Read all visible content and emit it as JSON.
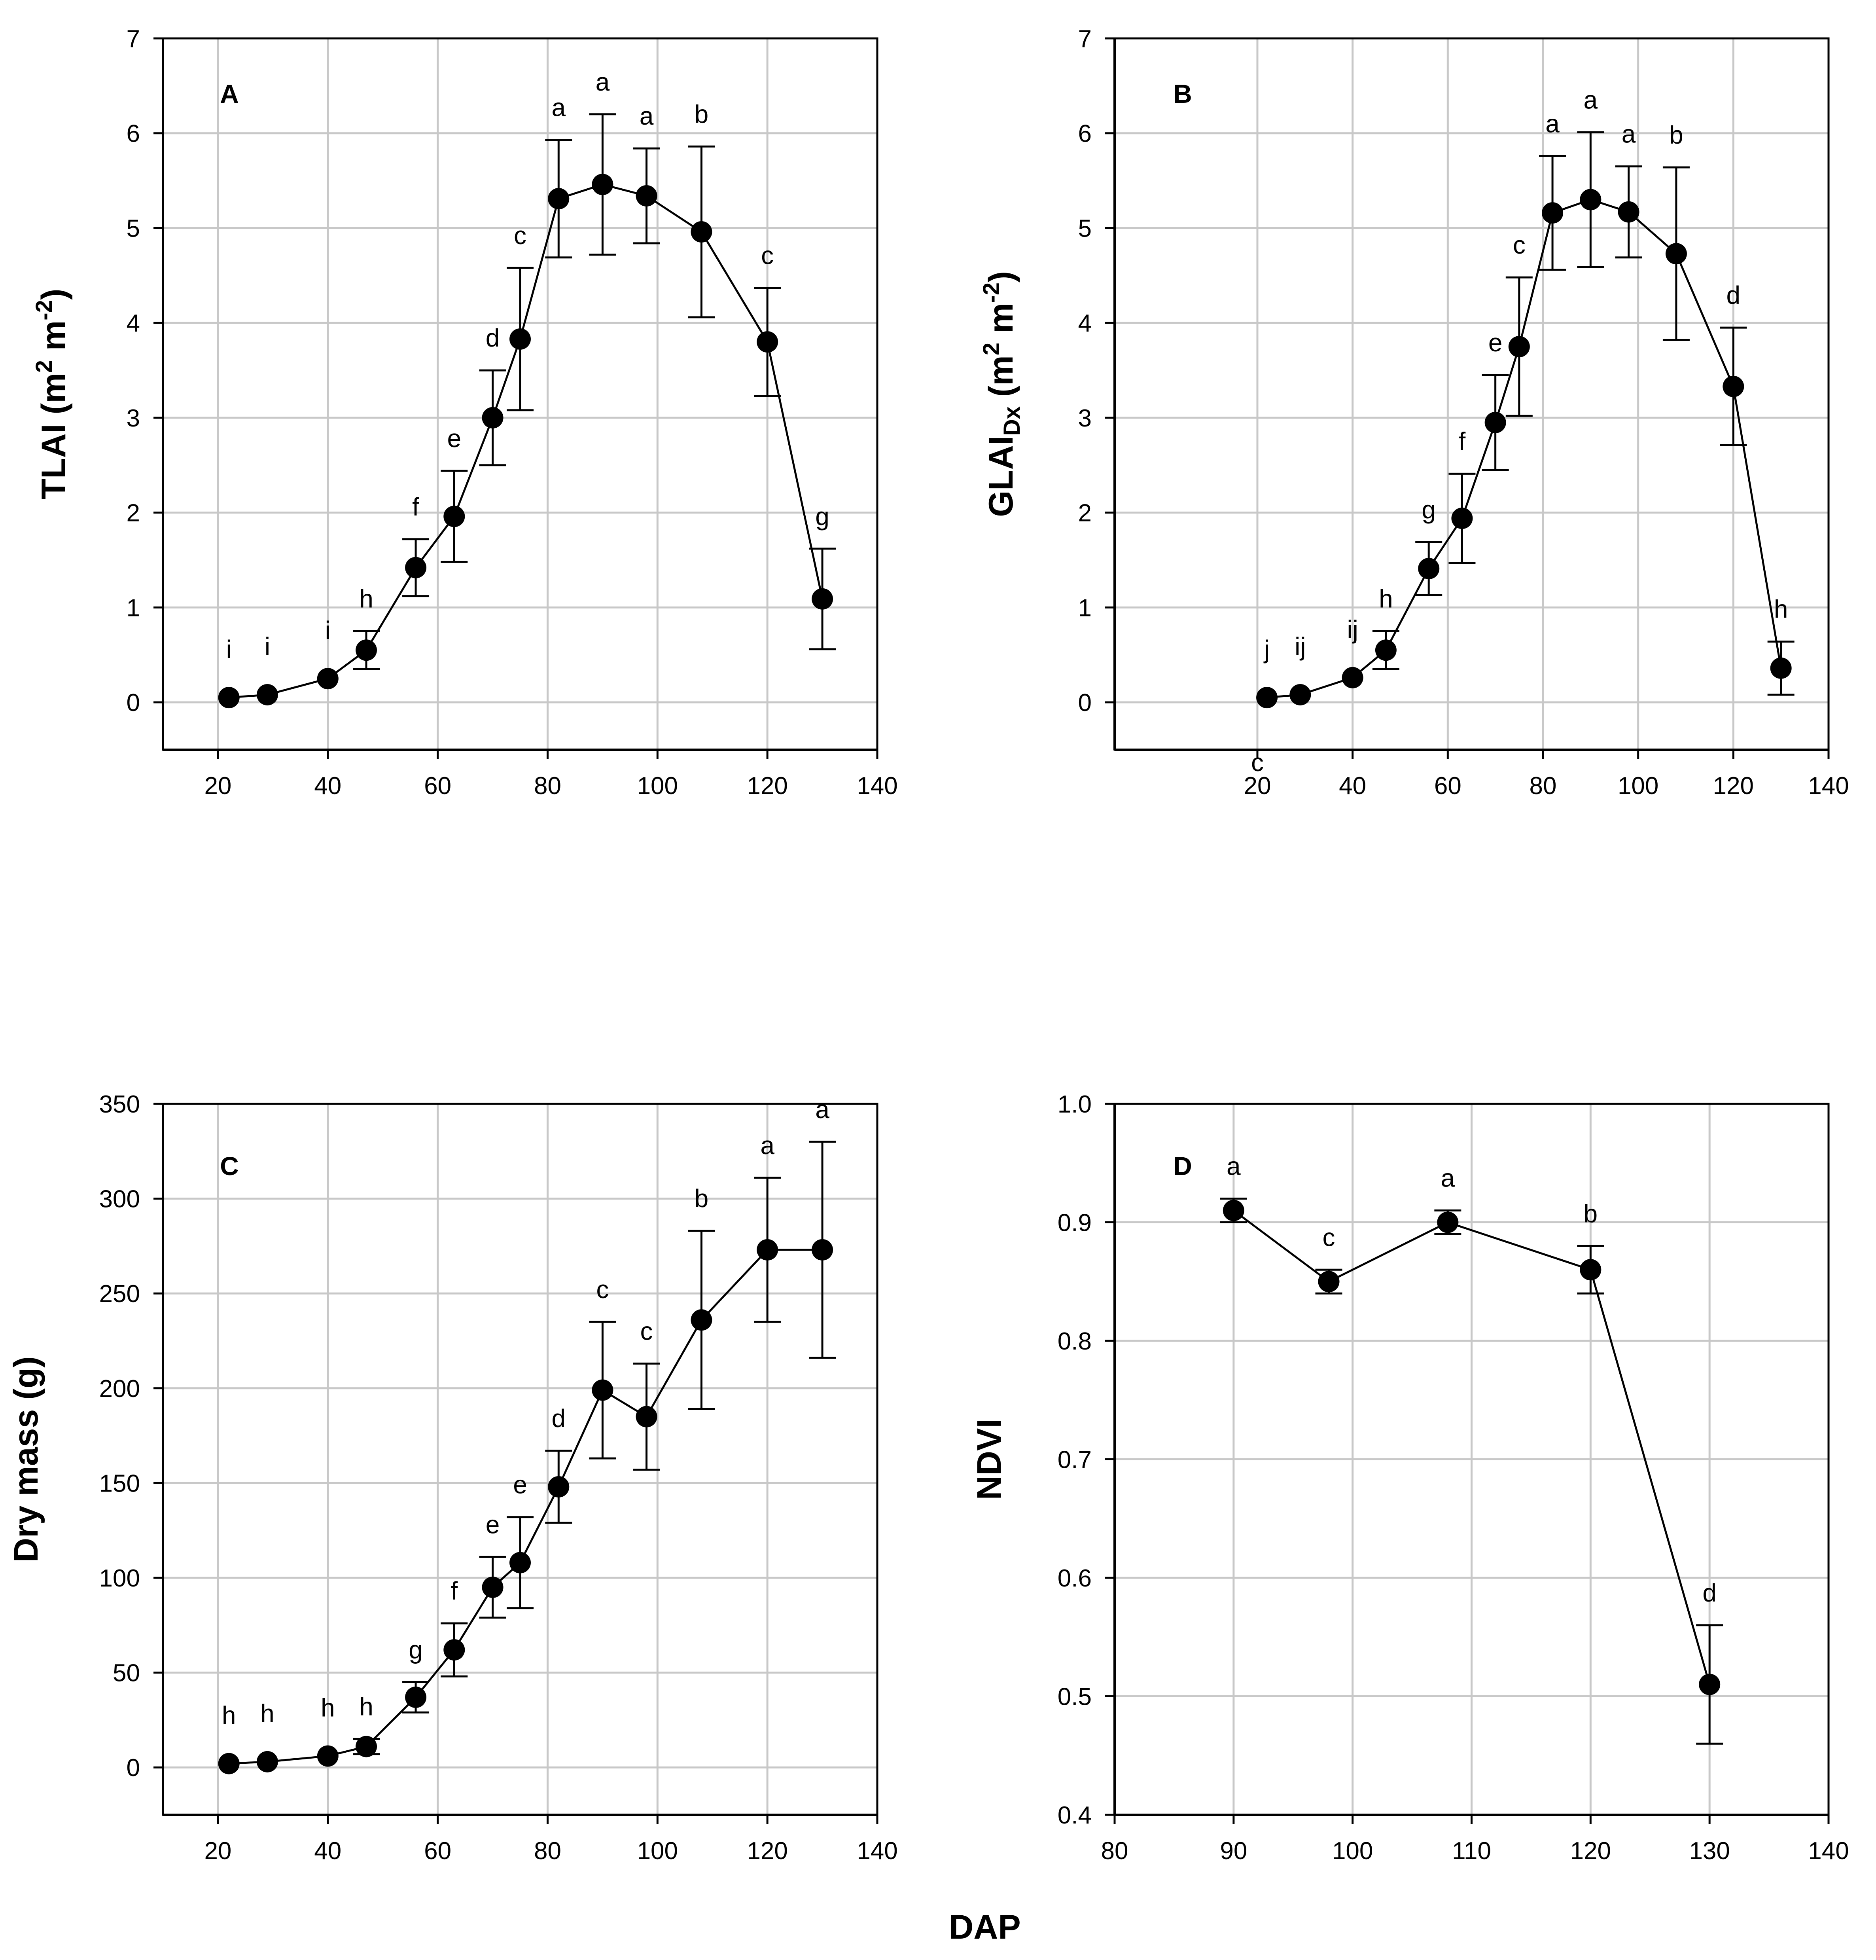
{
  "figure_xlabel": "DAP",
  "chart_data": [
    {
      "id": "A",
      "type": "line",
      "panel_label": "A",
      "ylabel_main": "TLAI (m",
      "ylabel_sup1": "2",
      "ylabel_mid": " m",
      "ylabel_sup2": "-2",
      "ylabel_tail": ")",
      "xlim": [
        10,
        140
      ],
      "ylim": [
        -0.5,
        7
      ],
      "xticks": [
        20,
        40,
        60,
        80,
        100,
        120,
        140
      ],
      "yticks": [
        0,
        1,
        2,
        3,
        4,
        5,
        6,
        7
      ],
      "x": [
        22,
        29,
        40,
        47,
        56,
        63,
        70,
        75,
        82,
        90,
        98,
        108,
        120,
        130
      ],
      "y": [
        0.05,
        0.08,
        0.25,
        0.55,
        1.42,
        1.96,
        3.0,
        3.83,
        5.31,
        5.46,
        5.34,
        4.96,
        3.8,
        1.09
      ],
      "err": [
        0,
        0,
        0,
        0.2,
        0.3,
        0.48,
        0.5,
        0.75,
        0.62,
        0.74,
        0.5,
        0.9,
        0.57,
        0.53
      ],
      "letters": [
        "i",
        "i",
        "i",
        "h",
        "f",
        "e",
        "d",
        "c",
        "a",
        "a",
        "a",
        "b",
        "c",
        "g"
      ],
      "extra_letters": []
    },
    {
      "id": "B",
      "type": "line",
      "panel_label": "B",
      "ylabel_main": "GLAI",
      "ylabel_sub": "Dx",
      "ylabel_mid": " (m",
      "ylabel_sup1": "2",
      "ylabel_mid2": " m",
      "ylabel_sup2": "-2",
      "ylabel_tail": ")",
      "xlim": [
        -10,
        140
      ],
      "ylim": [
        -0.5,
        7
      ],
      "xticks": [
        20,
        40,
        60,
        80,
        100,
        120,
        140
      ],
      "yticks": [
        0,
        1,
        2,
        3,
        4,
        5,
        6,
        7
      ],
      "x": [
        22,
        29,
        40,
        47,
        56,
        63,
        70,
        75,
        82,
        90,
        98,
        108,
        120,
        130
      ],
      "y": [
        0.05,
        0.08,
        0.26,
        0.55,
        1.41,
        1.94,
        2.95,
        3.75,
        5.16,
        5.3,
        5.17,
        4.73,
        3.33,
        0.36
      ],
      "err": [
        0,
        0,
        0,
        0.2,
        0.28,
        0.47,
        0.5,
        0.73,
        0.6,
        0.71,
        0.48,
        0.91,
        0.62,
        0.28
      ],
      "letters": [
        "j",
        "ij",
        "ij",
        "h",
        "g",
        "f",
        "e",
        "c",
        "a",
        "a",
        "a",
        "b",
        "d",
        "h"
      ],
      "extra_letters": [
        {
          "x": 20,
          "y": -0.6,
          "text": "c"
        }
      ]
    },
    {
      "id": "C",
      "type": "line",
      "panel_label": "C",
      "ylabel_main": "Dry mass (g)",
      "xlim": [
        10,
        140
      ],
      "ylim": [
        -25,
        350
      ],
      "xticks": [
        20,
        40,
        60,
        80,
        100,
        120,
        140
      ],
      "yticks": [
        0,
        50,
        100,
        150,
        200,
        250,
        300,
        350
      ],
      "x": [
        22,
        29,
        40,
        47,
        56,
        63,
        70,
        75,
        82,
        90,
        98,
        108,
        120,
        130
      ],
      "y": [
        2,
        3,
        6,
        11,
        37,
        62,
        95,
        108,
        148,
        199,
        185,
        236,
        273,
        273
      ],
      "err": [
        0,
        0,
        0,
        4,
        8,
        14,
        16,
        24,
        19,
        36,
        28,
        47,
        38,
        57
      ],
      "letters": [
        "h",
        "h",
        "h",
        "h",
        "g",
        "f",
        "e",
        "e",
        "d",
        "c",
        "c",
        "b",
        "a",
        "a"
      ],
      "extra_letters": []
    },
    {
      "id": "D",
      "type": "line",
      "panel_label": "D",
      "ylabel_main": "NDVI",
      "xlim": [
        80,
        140
      ],
      "ylim": [
        0.4,
        1.0
      ],
      "xticks": [
        80,
        90,
        100,
        110,
        120,
        130,
        140
      ],
      "yticks": [
        0.4,
        0.5,
        0.6,
        0.7,
        0.8,
        0.9,
        1.0
      ],
      "yticks_decimals": 1,
      "x": [
        90,
        98,
        108,
        120,
        130
      ],
      "y": [
        0.91,
        0.85,
        0.9,
        0.86,
        0.51
      ],
      "err": [
        0.01,
        0.01,
        0.01,
        0.02,
        0.05
      ],
      "letters": [
        "a",
        "c",
        "a",
        "b",
        "d"
      ],
      "extra_letters": []
    }
  ]
}
